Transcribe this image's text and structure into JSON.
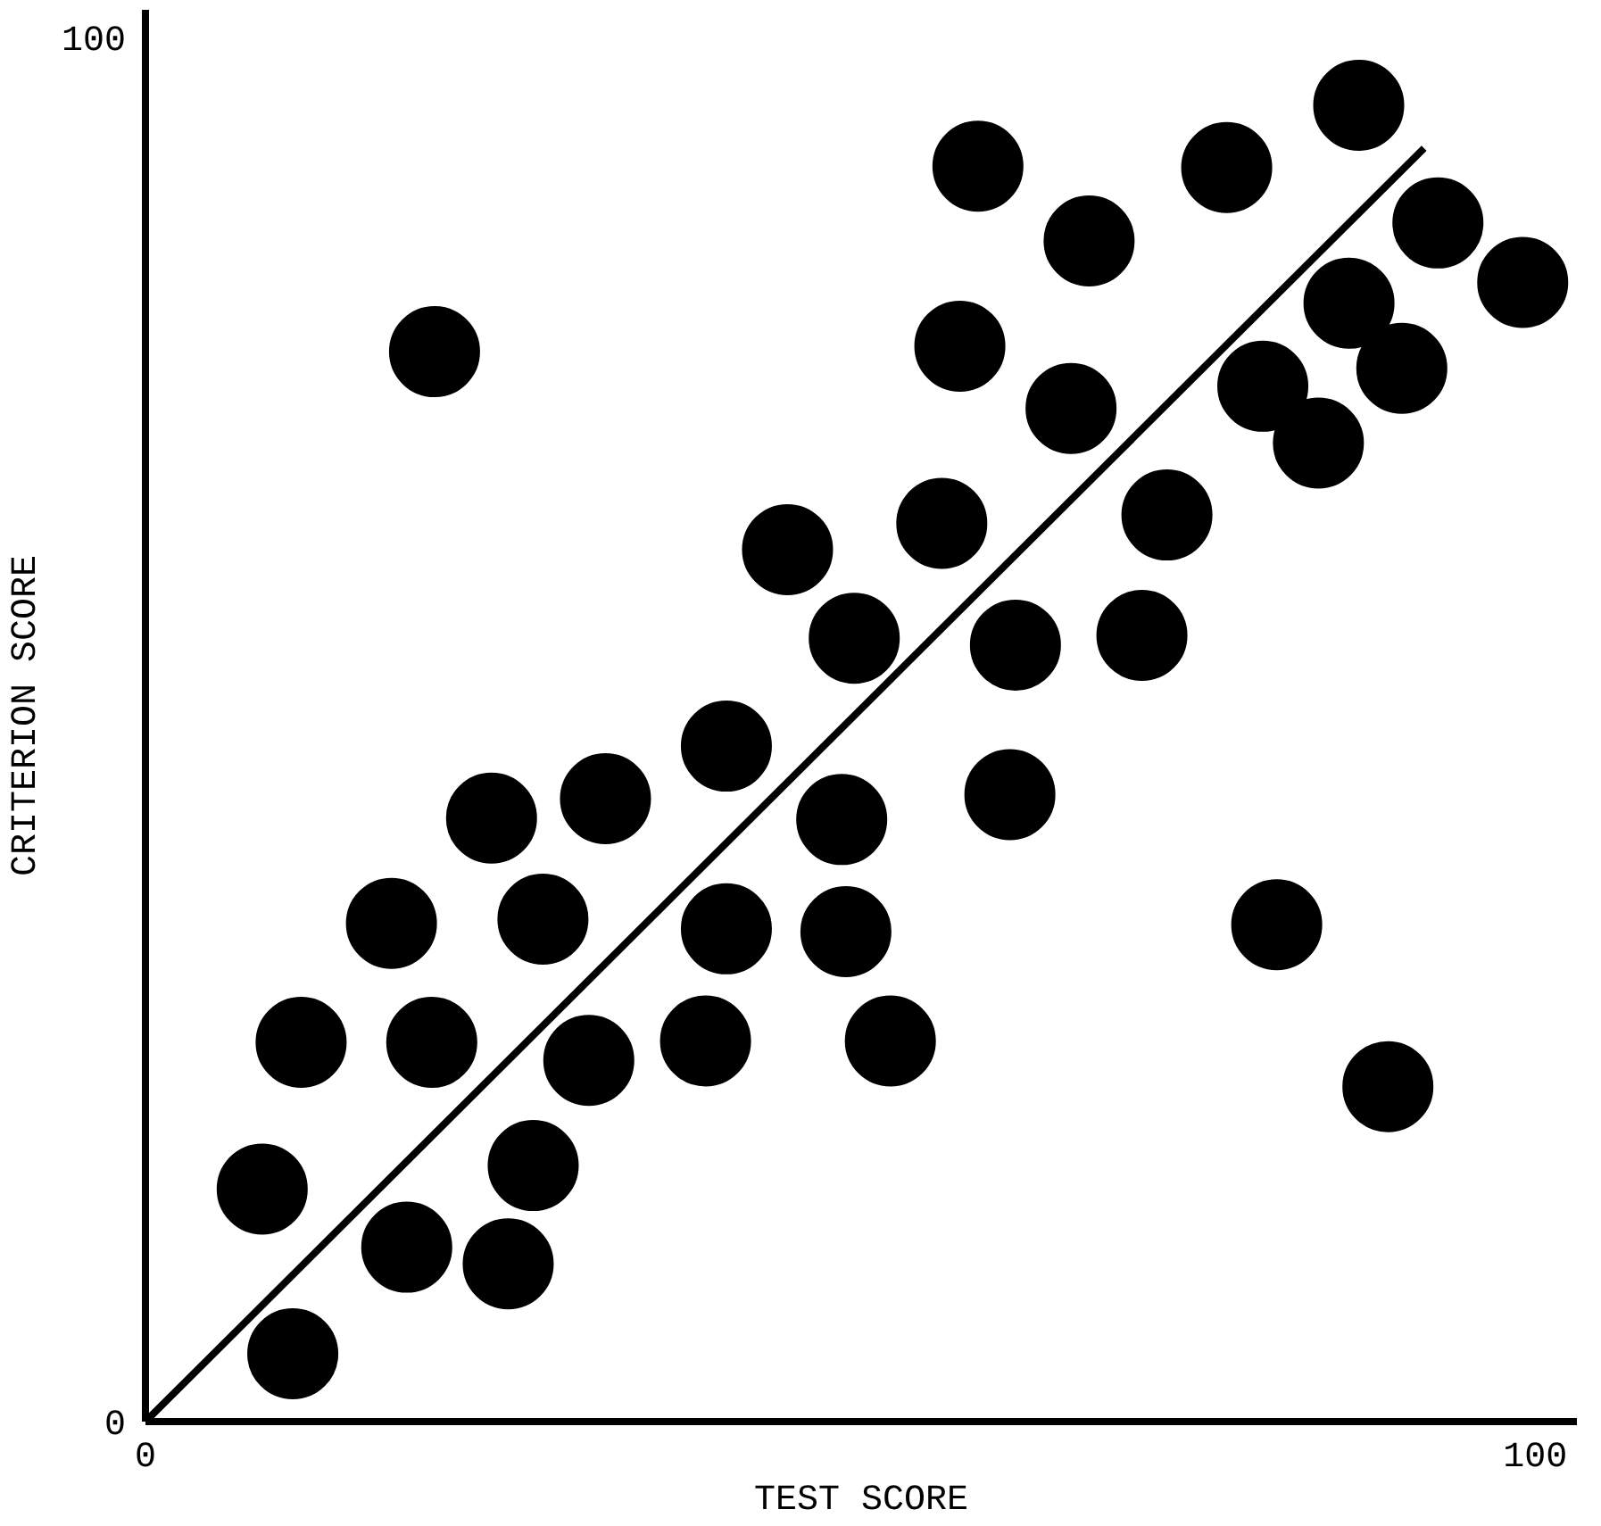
{
  "chart_data": {
    "type": "scatter",
    "xlabel": "TEST SCORE",
    "ylabel": "CRITERION SCORE",
    "xlim": [
      0,
      103
    ],
    "ylim": [
      0,
      102
    ],
    "xticks": [
      0,
      100
    ],
    "yticks": [
      0,
      100
    ],
    "grid": false,
    "series": [
      {
        "type": "scatter",
        "color": "#000000",
        "marker": "circle",
        "x": [
          10.6,
          8.4,
          11.2,
          18.8,
          17.7,
          20.6,
          20.8,
          24.9,
          26.1,
          27.9,
          28.6,
          31.9,
          33.1,
          40.3,
          41.8,
          41.8,
          46.2,
          50.1,
          50.4,
          51.0,
          53.6,
          57.3,
          58.6,
          59.9,
          62.2,
          62.6,
          66.6,
          67.9,
          71.7,
          73.5,
          77.8,
          80.4,
          81.4,
          84.4,
          86.6,
          87.3,
          89.4,
          90.4,
          93.0,
          99.1
        ],
        "values": [
          4.9,
          16.8,
          27.4,
          12.6,
          36.0,
          27.4,
          77.3,
          43.6,
          11.4,
          18.5,
          36.3,
          26.1,
          45.0,
          27.5,
          35.6,
          48.8,
          63.0,
          43.5,
          35.4,
          56.6,
          27.5,
          64.9,
          77.7,
          90.7,
          45.3,
          56.1,
          73.2,
          85.3,
          56.8,
          65.5,
          90.6,
          74.8,
          35.9,
          70.7,
          80.8,
          95.1,
          24.2,
          76.1,
          86.6,
          82.3
        ]
      },
      {
        "type": "line",
        "color": "#000000",
        "line_style": "solid",
        "marker": "none",
        "x": [
          0,
          92
        ],
        "values": [
          0,
          92
        ]
      }
    ]
  }
}
